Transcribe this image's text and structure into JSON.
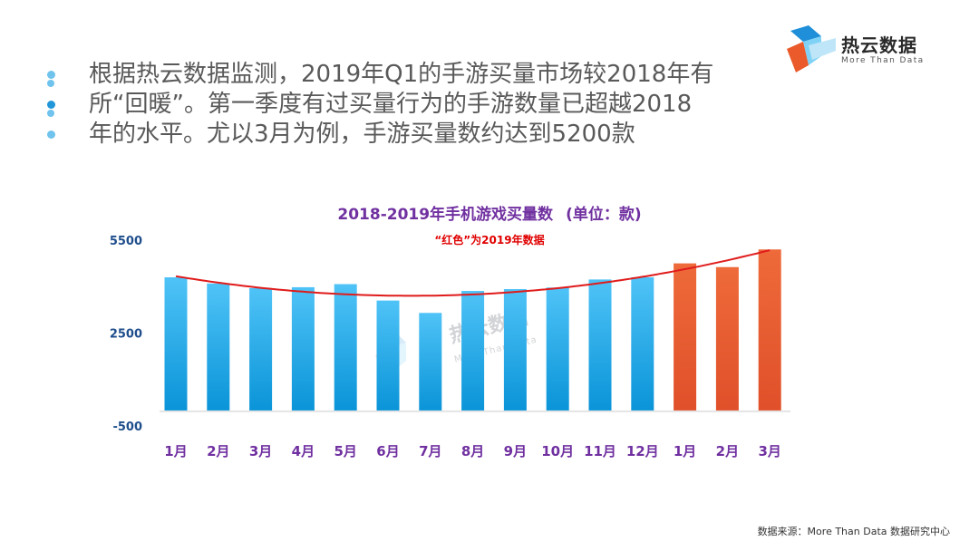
{
  "logo": {
    "name": "热云数据",
    "tagline": "More Than Data",
    "colors": {
      "blue": "#1f8fd9",
      "light_blue": "#7fd2f5",
      "orange": "#ea5a2a"
    }
  },
  "bullet_lines": [
    "根据热云数据监测，2019年Q1的手游买量市场较2018年有",
    "所“回暖”。第一季度有过买量行为的手游数量已超越2018",
    "年的水平。尤以3月为例，手游买量数约达到5200款"
  ],
  "chart": {
    "title": "2018-2019年手机游戏买量数",
    "unit": "(单位：款)",
    "note": "“红色”为2019年数据",
    "watermark": {
      "name": "热云数据",
      "tagline": "More Than Data"
    }
  },
  "chart_data": {
    "type": "bar",
    "title": "2018-2019年手机游戏买量数 (单位：款)",
    "categories": [
      "1月",
      "2月",
      "3月",
      "4月",
      "5月",
      "6月",
      "7月",
      "8月",
      "9月",
      "10月",
      "11月",
      "12月",
      "1月",
      "2月",
      "3月"
    ],
    "series": [
      {
        "name": "2018",
        "values": [
          4300,
          4100,
          3950,
          3980,
          4080,
          3550,
          3150,
          3860,
          3920,
          3970,
          4230,
          4300,
          null,
          null,
          null
        ],
        "color": "#29aae1"
      },
      {
        "name": "2019",
        "values": [
          null,
          null,
          null,
          null,
          null,
          null,
          null,
          null,
          null,
          null,
          null,
          null,
          4750,
          4630,
          5200
        ],
        "color": "#e85a2e"
      }
    ],
    "trendline": {
      "type": "polynomial",
      "color": "#e01b1b"
    },
    "ylim": [
      -500,
      5500
    ],
    "yticks": [
      "5500",
      "2500",
      "-500"
    ],
    "tick_color": "#1f4e8c",
    "category_color": "#7030a0",
    "xlabel": "",
    "ylabel": ""
  },
  "source": "数据来源：More Than Data 数据研究中心"
}
